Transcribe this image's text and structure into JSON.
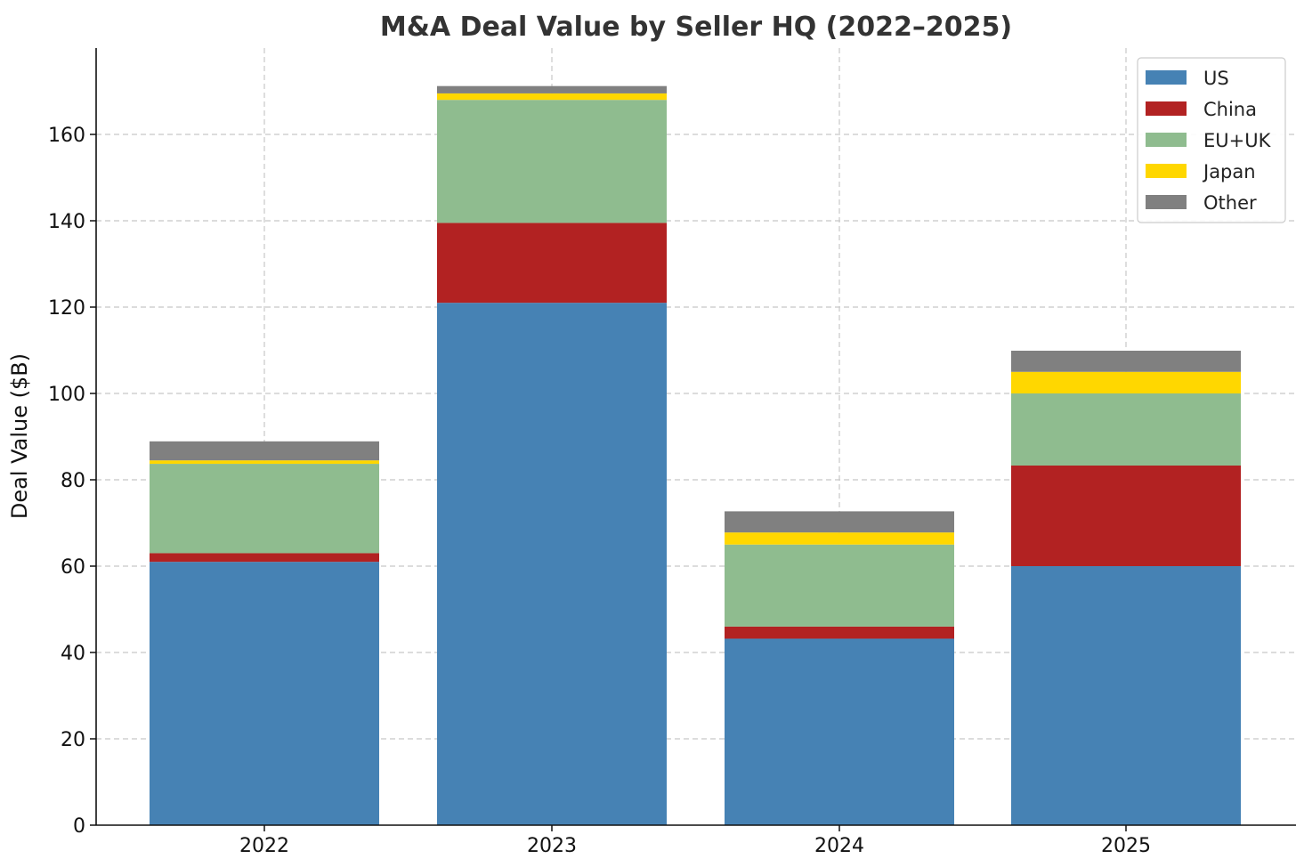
{
  "chart_data": {
    "type": "bar",
    "stacked": true,
    "title": "M&A Deal Value by Seller HQ (2022–2025)",
    "xlabel": "",
    "ylabel": "Deal Value ($B)",
    "categories": [
      "2022",
      "2023",
      "2024",
      "2025"
    ],
    "ylim": [
      0,
      180
    ],
    "yticks": [
      0,
      20,
      40,
      60,
      80,
      100,
      120,
      140,
      160
    ],
    "grid": true,
    "legend_position": "top-right",
    "series": [
      {
        "name": "US",
        "color": "#4682b4",
        "values": [
          61,
          121,
          43.2,
          60
        ]
      },
      {
        "name": "China",
        "color": "#b22222",
        "values": [
          2,
          18.5,
          2.8,
          23.3
        ]
      },
      {
        "name": "EU+UK",
        "color": "#8fbc8f",
        "values": [
          20.7,
          28.5,
          19,
          16.7
        ]
      },
      {
        "name": "Japan",
        "color": "#ffd700",
        "values": [
          0.8,
          1.5,
          2.8,
          5
        ]
      },
      {
        "name": "Other",
        "color": "#808080",
        "values": [
          4.4,
          1.7,
          4.9,
          4.9
        ]
      }
    ]
  }
}
